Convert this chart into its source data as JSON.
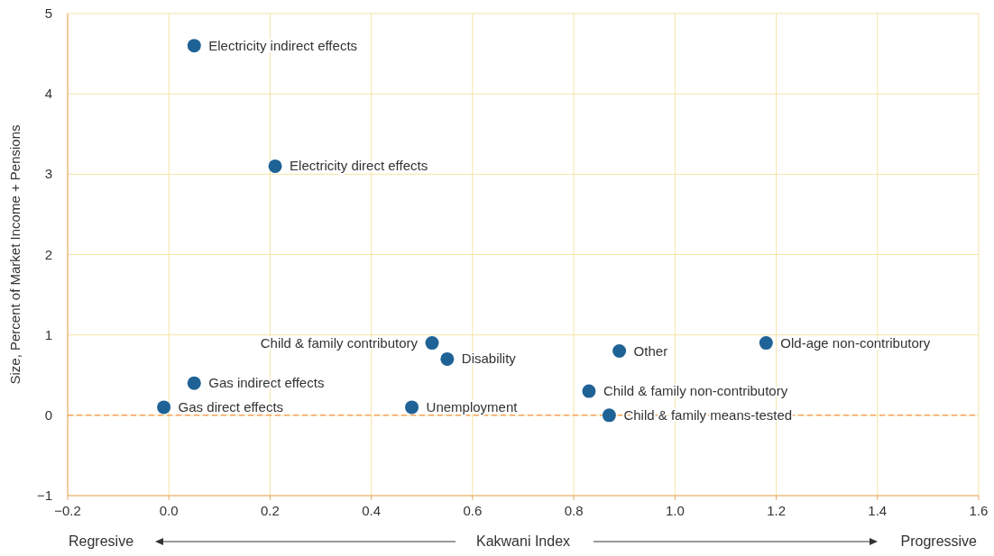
{
  "chart_data": {
    "type": "scatter",
    "xlabel": "Kakwani Index",
    "ylabel": "Size, Percent of Market Income + Pensions",
    "x": [
      0.05,
      0.21,
      0.52,
      0.55,
      0.89,
      1.18,
      0.05,
      0.83,
      -0.01,
      0.48,
      0.87
    ],
    "series": [
      {
        "color": "#1f6396",
        "values": [
          4.6,
          3.1,
          0.9,
          0.7,
          0.8,
          0.9,
          0.4,
          0.3,
          0.1,
          0.1,
          0
        ]
      }
    ],
    "marker": "circle",
    "grid": true,
    "xlim": [
      -0.2,
      1.6
    ],
    "ylim": [
      -1,
      5
    ],
    "xticks": [
      {
        "value": -0.2,
        "label": "−0.2"
      },
      {
        "value": 0,
        "label": "0.0"
      },
      {
        "value": 0.2,
        "label": "0.2"
      },
      {
        "value": 0.4,
        "label": "0.4"
      },
      {
        "value": 0.6,
        "label": "0.6"
      },
      {
        "value": 0.8,
        "label": "0.8"
      },
      {
        "value": 1,
        "label": "1.0"
      },
      {
        "value": 1.2,
        "label": "1.2"
      },
      {
        "value": 1.4,
        "label": "1.4"
      },
      {
        "value": 1.6,
        "label": "1.6"
      }
    ],
    "yticks": [
      {
        "value": -1,
        "label": "−1"
      },
      0,
      1,
      2,
      3,
      4,
      5
    ],
    "ref_lines": [
      {
        "axis": "y",
        "value": 0,
        "color": "#f4a460",
        "line_style": "dashed"
      }
    ],
    "annotations": [
      {
        "text": "Electricity indirect effects",
        "x": 0.05,
        "y": 4.6
      },
      {
        "text": "Electricity direct effects",
        "x": 0.21,
        "y": 3.1
      },
      {
        "text": "Child & family contributory",
        "x": 0.52,
        "y": 0.9
      },
      {
        "text": "Disability",
        "x": 0.55,
        "y": 0.7
      },
      {
        "text": "Other",
        "x": 0.89,
        "y": 0.8
      },
      {
        "text": "Old-age non-contributory",
        "x": 1.18,
        "y": 0.9
      },
      {
        "text": "Gas indirect effects",
        "x": 0.05,
        "y": 0.4
      },
      {
        "text": "Child & family non-contributory",
        "x": 0.83,
        "y": 0.3
      },
      {
        "text": "Gas direct effects",
        "x": -0.01,
        "y": 0.1
      },
      {
        "text": "Unemployment",
        "x": 0.48,
        "y": 0.1
      },
      {
        "text": "Child & family means-tested",
        "x": 0.87,
        "y": 0
      },
      "Regresive",
      "Progressive"
    ]
  }
}
